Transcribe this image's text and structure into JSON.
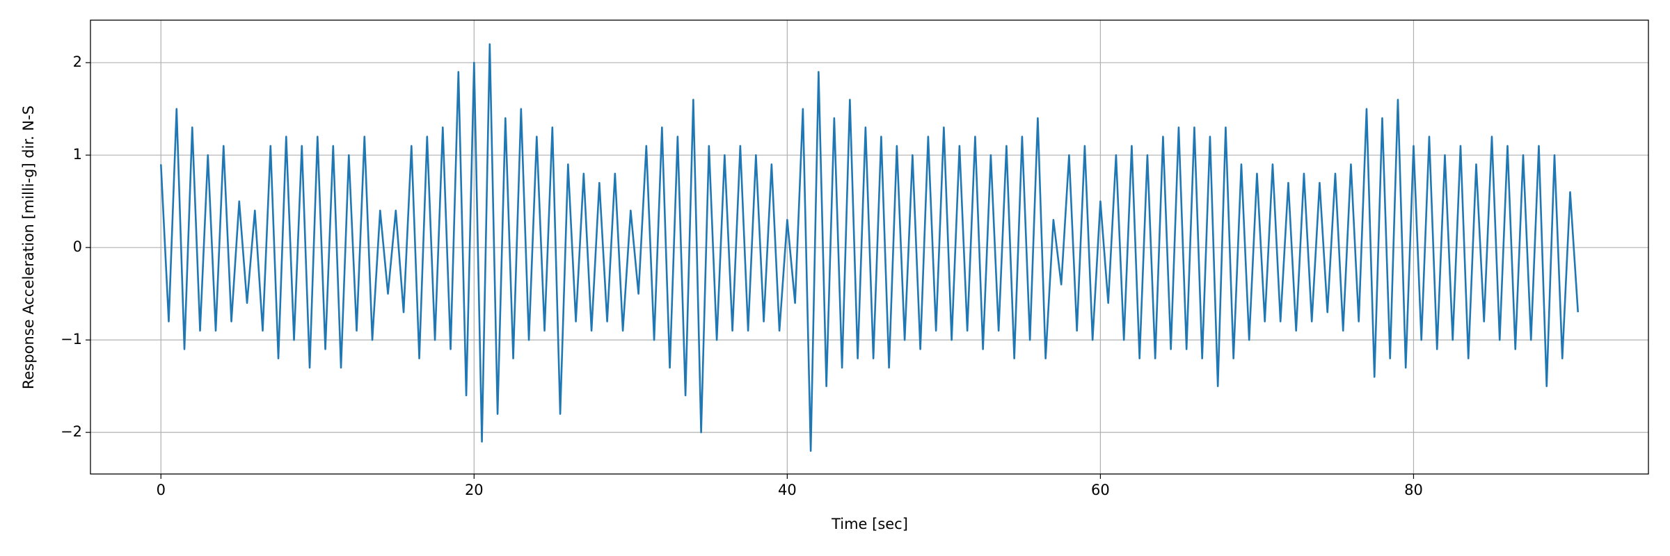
{
  "chart_data": {
    "type": "line",
    "xlabel": "Time [sec]",
    "ylabel": "Response Acceleration [milli-g] dir. N-S",
    "x": [
      0,
      0.5,
      1,
      1.5,
      2,
      2.5,
      3,
      3.5,
      4,
      4.5,
      5,
      5.5,
      6,
      6.5,
      7,
      7.5,
      8,
      8.5,
      9,
      9.5,
      10,
      10.5,
      11,
      11.5,
      12,
      12.5,
      13,
      13.5,
      14,
      14.5,
      15,
      15.5,
      16,
      16.5,
      17,
      17.5,
      18,
      18.5,
      19,
      19.5,
      20,
      20.5,
      21,
      21.5,
      22,
      22.5,
      23,
      23.5,
      24,
      24.5,
      25,
      25.5,
      26,
      26.5,
      27,
      27.5,
      28,
      28.5,
      29,
      29.5,
      30,
      30.5,
      31,
      31.5,
      32,
      32.5,
      33,
      33.5,
      34,
      34.5,
      35,
      35.5,
      36,
      36.5,
      37,
      37.5,
      38,
      38.5,
      39,
      39.5,
      40,
      40.5,
      41,
      41.5,
      42,
      42.5,
      43,
      43.5,
      44,
      44.5,
      45,
      45.5,
      46,
      46.5,
      47,
      47.5,
      48,
      48.5,
      49,
      49.5,
      50,
      50.5,
      51,
      51.5,
      52,
      52.5,
      53,
      53.5,
      54,
      54.5,
      55,
      55.5,
      56,
      56.5,
      57,
      57.5,
      58,
      58.5,
      59,
      59.5,
      60,
      60.5,
      61,
      61.5,
      62,
      62.5,
      63,
      63.5,
      64,
      64.5,
      65,
      65.5,
      66,
      66.5,
      67,
      67.5,
      68,
      68.5,
      69,
      69.5,
      70,
      70.5,
      71,
      71.5,
      72,
      72.5,
      73,
      73.5,
      74,
      74.5,
      75,
      75.5,
      76,
      76.5,
      77,
      77.5,
      78,
      78.5,
      79,
      79.5,
      80,
      80.5,
      81,
      81.5,
      82,
      82.5,
      83,
      83.5,
      84,
      84.5,
      85,
      85.5,
      86,
      86.5,
      87,
      87.5,
      88,
      88.5,
      89,
      89.5,
      90,
      90.5
    ],
    "series": [
      {
        "color": "#1f77b4",
        "values": [
          0.9,
          -0.8,
          1.5,
          -1.1,
          1.3,
          -0.9,
          1.0,
          -0.9,
          1.1,
          -0.8,
          0.5,
          -0.6,
          0.4,
          -0.9,
          1.1,
          -1.2,
          1.2,
          -1.0,
          1.1,
          -1.3,
          1.2,
          -1.1,
          1.1,
          -1.3,
          1.0,
          -0.9,
          1.2,
          -1.0,
          0.4,
          -0.5,
          0.4,
          -0.7,
          1.1,
          -1.2,
          1.2,
          -1.0,
          1.3,
          -1.1,
          1.9,
          -1.6,
          2.0,
          -2.1,
          2.2,
          -1.8,
          1.4,
          -1.2,
          1.5,
          -1.0,
          1.2,
          -0.9,
          1.3,
          -1.8,
          0.9,
          -0.8,
          0.8,
          -0.9,
          0.7,
          -0.8,
          0.8,
          -0.9,
          0.4,
          -0.5,
          1.1,
          -1.0,
          1.3,
          -1.3,
          1.2,
          -1.6,
          1.6,
          -2.0,
          1.1,
          -1.0,
          1.0,
          -0.9,
          1.1,
          -0.9,
          1.0,
          -0.8,
          0.9,
          -0.9,
          0.3,
          -0.6,
          1.5,
          -2.2,
          1.9,
          -1.5,
          1.4,
          -1.3,
          1.6,
          -1.2,
          1.3,
          -1.2,
          1.2,
          -1.3,
          1.1,
          -1.0,
          1.0,
          -1.1,
          1.2,
          -0.9,
          1.3,
          -1.0,
          1.1,
          -0.9,
          1.2,
          -1.1,
          1.0,
          -0.9,
          1.1,
          -1.2,
          1.2,
          -1.0,
          1.4,
          -1.2,
          0.3,
          -0.4,
          1.0,
          -0.9,
          1.1,
          -1.0,
          0.5,
          -0.6,
          1.0,
          -1.0,
          1.1,
          -1.2,
          1.0,
          -1.2,
          1.2,
          -1.1,
          1.3,
          -1.1,
          1.3,
          -1.2,
          1.2,
          -1.5,
          1.3,
          -1.2,
          0.9,
          -1.0,
          0.8,
          -0.8,
          0.9,
          -0.8,
          0.7,
          -0.9,
          0.8,
          -0.8,
          0.7,
          -0.7,
          0.8,
          -0.9,
          0.9,
          -0.8,
          1.5,
          -1.4,
          1.4,
          -1.2,
          1.6,
          -1.3,
          1.1,
          -1.0,
          1.2,
          -1.1,
          1.0,
          -1.0,
          1.1,
          -1.2,
          0.9,
          -0.8,
          1.2,
          -1.0,
          1.1,
          -1.1,
          1.0,
          -1.0,
          1.1,
          -1.5,
          1.0,
          -1.2,
          0.6,
          -0.7
        ]
      }
    ],
    "xlim": [
      -4.5,
      95
    ],
    "ylim": [
      -2.45,
      2.46
    ],
    "xticks": [
      0,
      20,
      40,
      60,
      80
    ],
    "yticks": [
      {
        "value": -2,
        "label": "−2"
      },
      {
        "value": -1,
        "label": "−1"
      },
      0,
      1,
      2
    ],
    "grid": true
  }
}
